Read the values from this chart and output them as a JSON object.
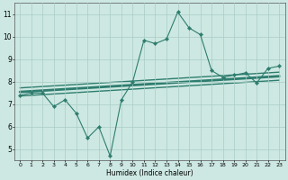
{
  "x": [
    0,
    1,
    2,
    3,
    4,
    5,
    6,
    7,
    8,
    9,
    10,
    11,
    12,
    13,
    14,
    15,
    16,
    17,
    18,
    19,
    20,
    21,
    22,
    23
  ],
  "y_main": [
    7.4,
    7.5,
    7.5,
    6.9,
    7.2,
    6.6,
    5.5,
    6.0,
    4.7,
    7.2,
    8.0,
    9.85,
    9.7,
    9.9,
    11.1,
    10.4,
    10.1,
    8.5,
    8.2,
    8.3,
    8.4,
    7.95,
    8.6,
    8.7
  ],
  "line_color": "#2e7d6e",
  "bg_color": "#cde8e2",
  "grid_color": "#aaccc6",
  "xlabel": "Humidex (Indice chaleur)",
  "xlim": [
    -0.5,
    23.5
  ],
  "ylim": [
    4.5,
    11.5
  ],
  "yticks": [
    5,
    6,
    7,
    8,
    9,
    10,
    11
  ],
  "xticks": [
    0,
    1,
    2,
    3,
    4,
    5,
    6,
    7,
    8,
    9,
    10,
    11,
    12,
    13,
    14,
    15,
    16,
    17,
    18,
    19,
    20,
    21,
    22,
    23
  ],
  "trend_start": 7.55,
  "trend_end": 8.25,
  "trend_offsets": [
    0.0,
    0.18,
    -0.18
  ],
  "trend_linewidths": [
    2.0,
    1.0,
    1.0
  ]
}
